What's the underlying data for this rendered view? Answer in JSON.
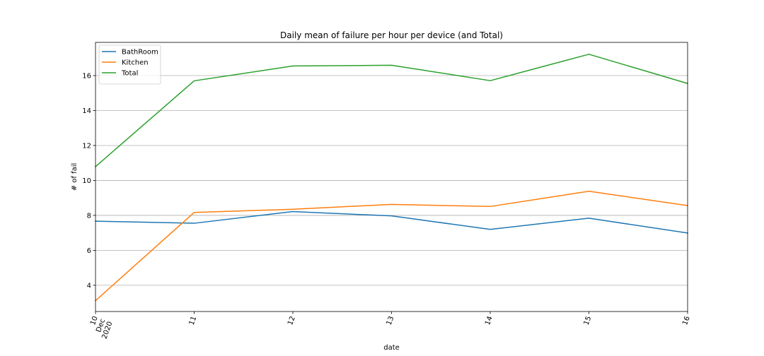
{
  "chart_data": {
    "type": "line",
    "title": "Daily mean of failure per hour per device (and Total)",
    "xlabel": "date",
    "ylabel": "# of fail",
    "x": [
      "2020-12-10",
      "2020-12-11",
      "2020-12-12",
      "2020-12-13",
      "2020-12-14",
      "2020-12-15",
      "2020-12-16"
    ],
    "x_tick_labels": [
      "10\nDec\n2020",
      "11",
      "12",
      "13",
      "14",
      "15",
      "16"
    ],
    "ylim": [
      2.5,
      17.9
    ],
    "y_ticks": [
      4,
      6,
      8,
      10,
      12,
      14,
      16
    ],
    "grid": "horizontal",
    "legend_position": "top-left",
    "series": [
      {
        "name": "BathRoom",
        "color": "#1f77b4",
        "values": [
          7.67,
          7.55,
          8.22,
          7.97,
          7.2,
          7.84,
          6.99
        ]
      },
      {
        "name": "Kitchen",
        "color": "#ff7f0e",
        "values": [
          3.12,
          8.17,
          8.35,
          8.63,
          8.51,
          9.38,
          8.56
        ]
      },
      {
        "name": "Total",
        "color": "#2ca02c",
        "values": [
          10.79,
          15.7,
          16.55,
          16.59,
          15.71,
          17.22,
          15.55
        ]
      }
    ]
  }
}
